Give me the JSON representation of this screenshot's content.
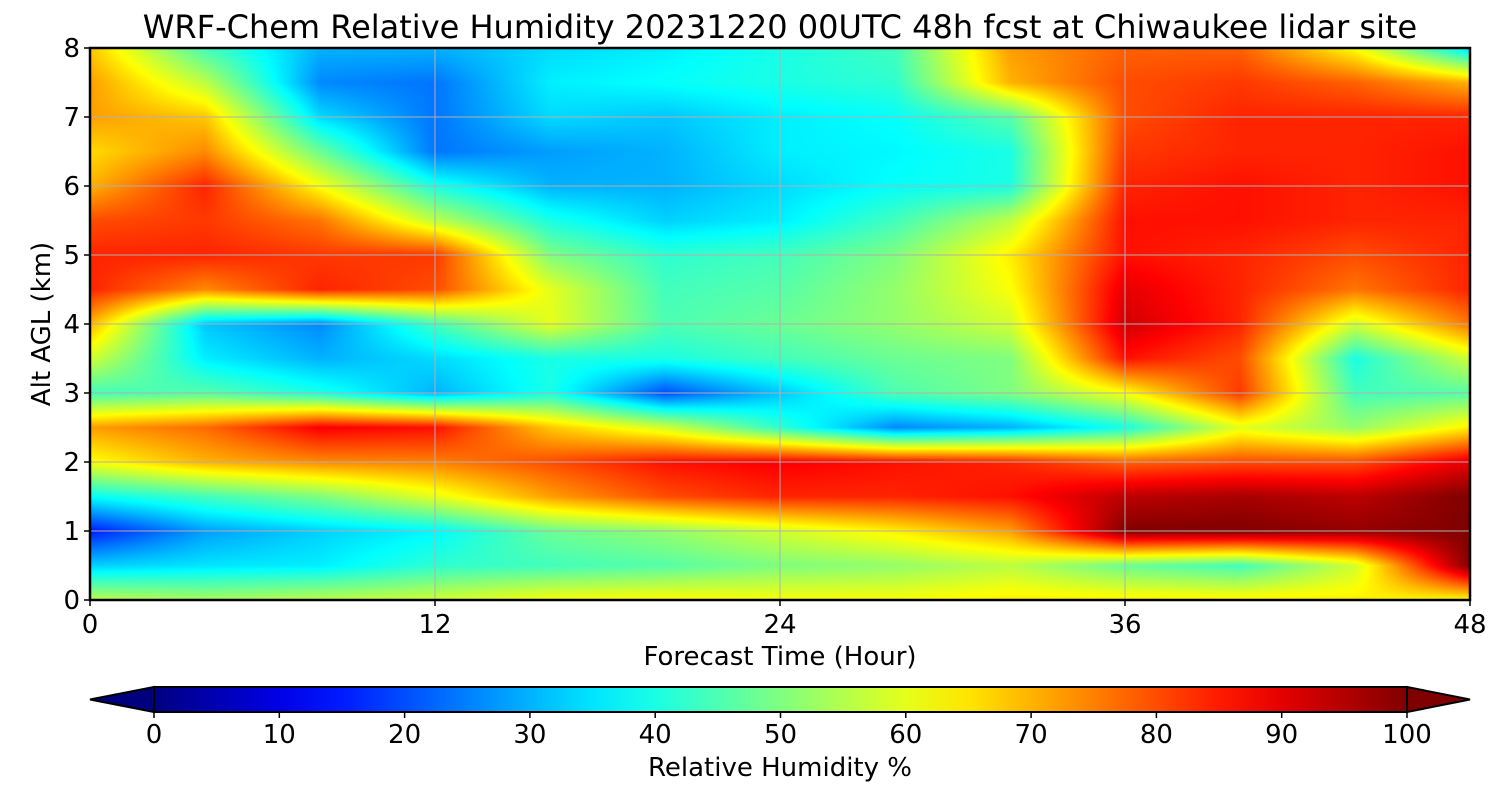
{
  "chart_data": {
    "type": "heatmap",
    "title": "WRF-Chem Relative Humidity 20231220 00UTC 48h fcst at Chiwaukee lidar site",
    "xlabel": "Forecast Time (Hour)",
    "ylabel": "Alt AGL (km)",
    "xlim": [
      0,
      48
    ],
    "ylim": [
      0,
      8
    ],
    "x_ticks": [
      0,
      12,
      24,
      36,
      48
    ],
    "y_ticks": [
      0,
      1,
      2,
      3,
      4,
      5,
      6,
      7,
      8
    ],
    "grid": true,
    "colorbar": {
      "label": "Relative Humidity %",
      "range": [
        0,
        100
      ],
      "ticks": [
        0,
        10,
        20,
        30,
        40,
        50,
        60,
        70,
        80,
        90,
        100
      ],
      "extend": "both",
      "colormap": "jet",
      "orientation": "horizontal"
    },
    "x": [
      0,
      4,
      8,
      12,
      16,
      20,
      24,
      28,
      32,
      36,
      40,
      44,
      48
    ],
    "y": [
      0,
      0.5,
      1,
      1.5,
      2,
      2.5,
      3,
      3.5,
      4,
      4.5,
      5,
      5.5,
      6,
      6.5,
      7,
      7.5,
      8
    ],
    "values": [
      [
        56,
        54,
        56,
        58,
        62,
        63,
        62,
        62,
        64,
        64,
        64,
        64,
        62
      ],
      [
        33,
        35,
        36,
        42,
        44,
        46,
        50,
        52,
        56,
        48,
        44,
        58,
        100
      ],
      [
        15,
        28,
        33,
        37,
        48,
        52,
        58,
        64,
        72,
        100,
        100,
        98,
        100
      ],
      [
        38,
        44,
        50,
        60,
        72,
        80,
        84,
        84,
        86,
        94,
        96,
        94,
        100
      ],
      [
        62,
        70,
        74,
        75,
        80,
        86,
        88,
        86,
        84,
        78,
        80,
        80,
        90
      ],
      [
        72,
        77,
        88,
        86,
        68,
        58,
        42,
        26,
        30,
        40,
        60,
        52,
        64
      ],
      [
        44,
        46,
        40,
        30,
        40,
        20,
        32,
        45,
        50,
        62,
        82,
        44,
        46
      ],
      [
        58,
        36,
        30,
        34,
        40,
        40,
        44,
        48,
        50,
        86,
        80,
        40,
        58
      ],
      [
        70,
        32,
        26,
        44,
        60,
        45,
        48,
        52,
        58,
        92,
        84,
        58,
        76
      ],
      [
        84,
        74,
        84,
        80,
        60,
        44,
        46,
        52,
        62,
        90,
        84,
        76,
        84
      ],
      [
        84,
        84,
        82,
        82,
        50,
        42,
        44,
        50,
        64,
        86,
        84,
        80,
        84
      ],
      [
        80,
        82,
        76,
        56,
        40,
        33,
        36,
        44,
        56,
        86,
        86,
        84,
        84
      ],
      [
        70,
        84,
        62,
        40,
        30,
        30,
        34,
        38,
        40,
        84,
        86,
        84,
        86
      ],
      [
        66,
        74,
        48,
        24,
        28,
        30,
        36,
        37,
        40,
        82,
        84,
        84,
        86
      ],
      [
        72,
        68,
        34,
        24,
        34,
        32,
        36,
        38,
        46,
        80,
        84,
        84,
        84
      ],
      [
        72,
        56,
        26,
        24,
        36,
        38,
        40,
        42,
        70,
        80,
        82,
        78,
        70
      ],
      [
        68,
        44,
        30,
        30,
        34,
        36,
        40,
        44,
        72,
        78,
        78,
        62,
        34
      ]
    ]
  }
}
